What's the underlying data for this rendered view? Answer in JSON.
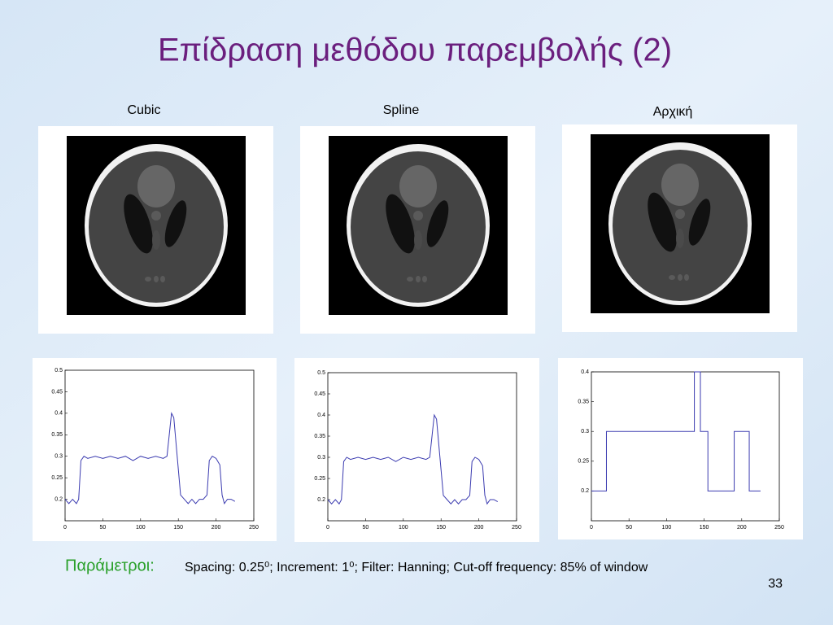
{
  "title": "Επίδραση μεθόδου παρεμβολής (2)",
  "panels": [
    {
      "label": "Cubic",
      "plot": {
        "type": "line",
        "color": "#3b3bb0",
        "xlim": [
          0,
          250
        ],
        "ylim": [
          0.15,
          0.5
        ],
        "xticks": [
          0,
          50,
          100,
          150,
          200,
          250
        ],
        "yticks": [
          0.2,
          0.25,
          0.3,
          0.35,
          0.4,
          0.45,
          0.5
        ],
        "x": [
          0,
          5,
          10,
          15,
          18,
          21,
          25,
          30,
          40,
          50,
          60,
          70,
          80,
          90,
          100,
          110,
          120,
          130,
          135,
          138,
          141,
          144,
          147,
          150,
          153,
          158,
          163,
          168,
          173,
          178,
          183,
          188,
          191,
          195,
          200,
          205,
          208,
          211,
          215,
          220,
          225
        ],
        "values": [
          0.2,
          0.19,
          0.2,
          0.19,
          0.2,
          0.29,
          0.3,
          0.295,
          0.3,
          0.295,
          0.3,
          0.295,
          0.3,
          0.29,
          0.3,
          0.295,
          0.3,
          0.295,
          0.3,
          0.35,
          0.4,
          0.39,
          0.33,
          0.27,
          0.21,
          0.2,
          0.19,
          0.2,
          0.19,
          0.2,
          0.2,
          0.21,
          0.29,
          0.3,
          0.295,
          0.28,
          0.21,
          0.19,
          0.2,
          0.2,
          0.195
        ]
      }
    },
    {
      "label": "Spline",
      "plot": {
        "type": "line",
        "color": "#3b3bb0",
        "xlim": [
          0,
          250
        ],
        "ylim": [
          0.15,
          0.5
        ],
        "xticks": [
          0,
          50,
          100,
          150,
          200,
          250
        ],
        "yticks": [
          0.2,
          0.25,
          0.3,
          0.35,
          0.4,
          0.45,
          0.5
        ],
        "x": [
          0,
          5,
          10,
          15,
          18,
          21,
          25,
          30,
          40,
          50,
          60,
          70,
          80,
          90,
          100,
          110,
          120,
          130,
          135,
          138,
          141,
          144,
          147,
          150,
          153,
          158,
          163,
          168,
          173,
          178,
          183,
          188,
          191,
          195,
          200,
          205,
          208,
          211,
          215,
          220,
          225
        ],
        "values": [
          0.2,
          0.19,
          0.2,
          0.19,
          0.2,
          0.29,
          0.3,
          0.295,
          0.3,
          0.295,
          0.3,
          0.295,
          0.3,
          0.29,
          0.3,
          0.295,
          0.3,
          0.295,
          0.3,
          0.35,
          0.4,
          0.39,
          0.33,
          0.27,
          0.21,
          0.2,
          0.19,
          0.2,
          0.19,
          0.2,
          0.2,
          0.21,
          0.29,
          0.3,
          0.295,
          0.28,
          0.21,
          0.19,
          0.2,
          0.2,
          0.195
        ]
      }
    },
    {
      "label": "Αρχική",
      "plot": {
        "type": "line",
        "color": "#3b3bb0",
        "xlim": [
          0,
          250
        ],
        "ylim": [
          0.15,
          0.4
        ],
        "xticks": [
          0,
          50,
          100,
          150,
          200,
          250
        ],
        "yticks": [
          0.2,
          0.25,
          0.3,
          0.35,
          0.4
        ],
        "x": [
          0,
          20,
          20,
          137,
          137,
          145,
          145,
          155,
          155,
          190,
          190,
          210,
          210,
          225
        ],
        "values": [
          0.2,
          0.2,
          0.3,
          0.3,
          0.4,
          0.4,
          0.3,
          0.3,
          0.2,
          0.2,
          0.3,
          0.3,
          0.2,
          0.2
        ]
      }
    }
  ],
  "parameters": {
    "label": "Παράμετροι:",
    "text": "Spacing: 0.25⁰; Increment: 1⁰; Filter: Hanning; Cut-off frequency: 85% of window"
  },
  "page_number": "33"
}
